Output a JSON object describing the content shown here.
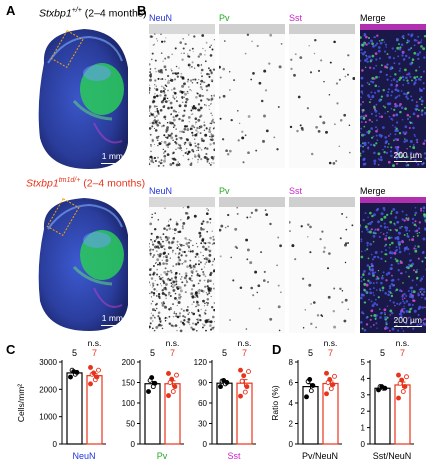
{
  "panels": {
    "A": {
      "label": "A",
      "rows": [
        {
          "italic": "Stxbp1",
          "sup": "+/+",
          "suffix": " (2–4 months)",
          "color": "#000000",
          "scale": "1 mm"
        },
        {
          "italic": "Stxbp1",
          "sup": "tm1d/+",
          "suffix": " (2–4 months)",
          "color": "#e8341c",
          "scale": "1 mm"
        }
      ]
    },
    "B": {
      "label": "B",
      "channels": [
        {
          "name": "NeuN",
          "color": "#2233dd"
        },
        {
          "name": "Pv",
          "color": "#22aa22"
        },
        {
          "name": "Sst",
          "color": "#cc22cc"
        },
        {
          "name": "Merge",
          "color": "#000000"
        }
      ],
      "scale": "200 µm"
    },
    "C": {
      "label": "C"
    },
    "D": {
      "label": "D"
    }
  },
  "colors": {
    "wt": "#000000",
    "mut": "#e8341c",
    "neun": "#2233dd",
    "pv": "#22aa22",
    "sst": "#cc22cc"
  },
  "chart_data": [
    {
      "type": "bar",
      "ylabel": "Cells/mm²",
      "xlabel": "NeuN",
      "ylim": [
        0,
        3000
      ],
      "ticks": [
        0,
        1000,
        2000,
        3000
      ],
      "tick_labels": [
        "0",
        "1000",
        "2000",
        "3000"
      ],
      "n": [
        "5",
        "7"
      ],
      "sig": "n.s.",
      "series": [
        {
          "values": [
            2600
          ],
          "points": [
            2450,
            2550,
            2620,
            2700,
            2650
          ]
        },
        {
          "values": [
            2500
          ],
          "points": [
            2200,
            2350,
            2450,
            2550,
            2600,
            2700,
            2800
          ]
        }
      ]
    },
    {
      "type": "bar",
      "ylabel": "",
      "xlabel": "Pv",
      "ylim": [
        0,
        200
      ],
      "ticks": [
        0,
        50,
        100,
        150,
        200
      ],
      "tick_labels": [
        "0",
        "50",
        "100",
        "150",
        "200"
      ],
      "n": [
        "5",
        "7"
      ],
      "sig": "n.s.",
      "series": [
        {
          "values": [
            147
          ],
          "points": [
            128,
            140,
            148,
            155,
            162
          ]
        },
        {
          "values": [
            147
          ],
          "points": [
            118,
            128,
            140,
            150,
            158,
            168,
            172
          ]
        }
      ]
    },
    {
      "type": "bar",
      "ylabel": "",
      "xlabel": "Sst",
      "ylim": [
        0,
        120
      ],
      "ticks": [
        0,
        30,
        60,
        90,
        120
      ],
      "tick_labels": [
        "0",
        "30",
        "60",
        "90",
        "120"
      ],
      "n": [
        "5",
        "7"
      ],
      "sig": "n.s.",
      "series": [
        {
          "values": [
            89
          ],
          "points": [
            84,
            88,
            90,
            92,
            93
          ]
        },
        {
          "values": [
            89
          ],
          "points": [
            70,
            76,
            84,
            92,
            100,
            106,
            108
          ]
        }
      ]
    },
    {
      "type": "bar",
      "ylabel": "Ratio (%)",
      "xlabel": "Pv/NeuN",
      "ylim": [
        0,
        8
      ],
      "ticks": [
        0,
        2,
        4,
        6,
        8
      ],
      "tick_labels": [
        "0",
        "2",
        "4",
        "6",
        "8"
      ],
      "n": [
        "5",
        "7"
      ],
      "sig": "n.s.",
      "series": [
        {
          "values": [
            5.6
          ],
          "points": [
            4.6,
            5.2,
            5.7,
            6.1,
            6.3
          ]
        },
        {
          "values": [
            5.9
          ],
          "points": [
            4.9,
            5.4,
            5.8,
            6.0,
            6.3,
            6.6,
            6.9
          ]
        }
      ]
    },
    {
      "type": "bar",
      "ylabel": "",
      "xlabel": "Sst/NeuN",
      "ylim": [
        0,
        5
      ],
      "ticks": [
        0,
        1,
        2,
        3,
        4,
        5
      ],
      "tick_labels": [
        "0",
        "1",
        "2",
        "3",
        "4",
        "5"
      ],
      "n": [
        "5",
        "7"
      ],
      "sig": "n.s.",
      "series": [
        {
          "values": [
            3.4
          ],
          "points": [
            3.3,
            3.4,
            3.4,
            3.5,
            3.5
          ]
        },
        {
          "values": [
            3.6
          ],
          "points": [
            2.8,
            3.2,
            3.5,
            3.7,
            3.9,
            4.1,
            4.2
          ]
        }
      ]
    }
  ]
}
